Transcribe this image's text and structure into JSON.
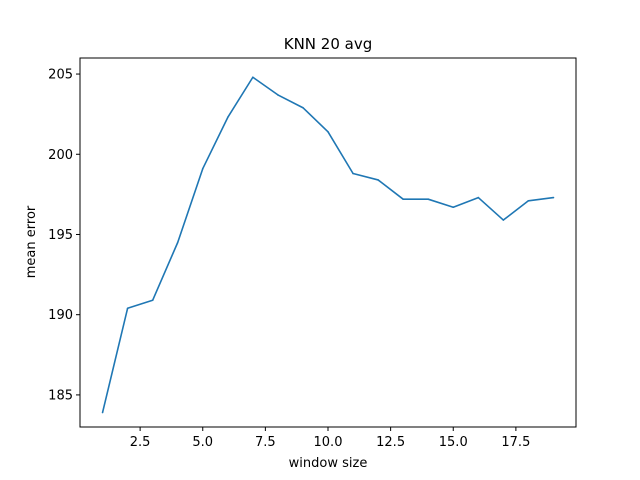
{
  "chart_data": {
    "type": "line",
    "title": "KNN 20 avg",
    "xlabel": "window size",
    "ylabel": "mean error",
    "xlim": [
      0.1,
      19.9
    ],
    "ylim": [
      183.0,
      206.0
    ],
    "xticks": [
      2.5,
      5.0,
      7.5,
      10.0,
      12.5,
      15.0,
      17.5
    ],
    "xtick_labels": [
      "2.5",
      "5.0",
      "7.5",
      "10.0",
      "12.5",
      "15.0",
      "17.5"
    ],
    "yticks": [
      185,
      190,
      195,
      200,
      205
    ],
    "ytick_labels": [
      "185",
      "190",
      "195",
      "200",
      "205"
    ],
    "grid": false,
    "legend": false,
    "series": [
      {
        "color": "#1f77b4",
        "x": [
          1,
          2,
          3,
          4,
          5,
          6,
          7,
          8,
          9,
          10,
          11,
          12,
          13,
          14,
          15,
          16,
          17,
          18,
          19
        ],
        "y": [
          183.9,
          190.4,
          190.9,
          194.5,
          199.1,
          202.3,
          204.8,
          203.7,
          202.9,
          201.4,
          198.8,
          198.4,
          197.2,
          197.2,
          196.7,
          197.3,
          195.9,
          197.1,
          197.3
        ]
      }
    ]
  }
}
